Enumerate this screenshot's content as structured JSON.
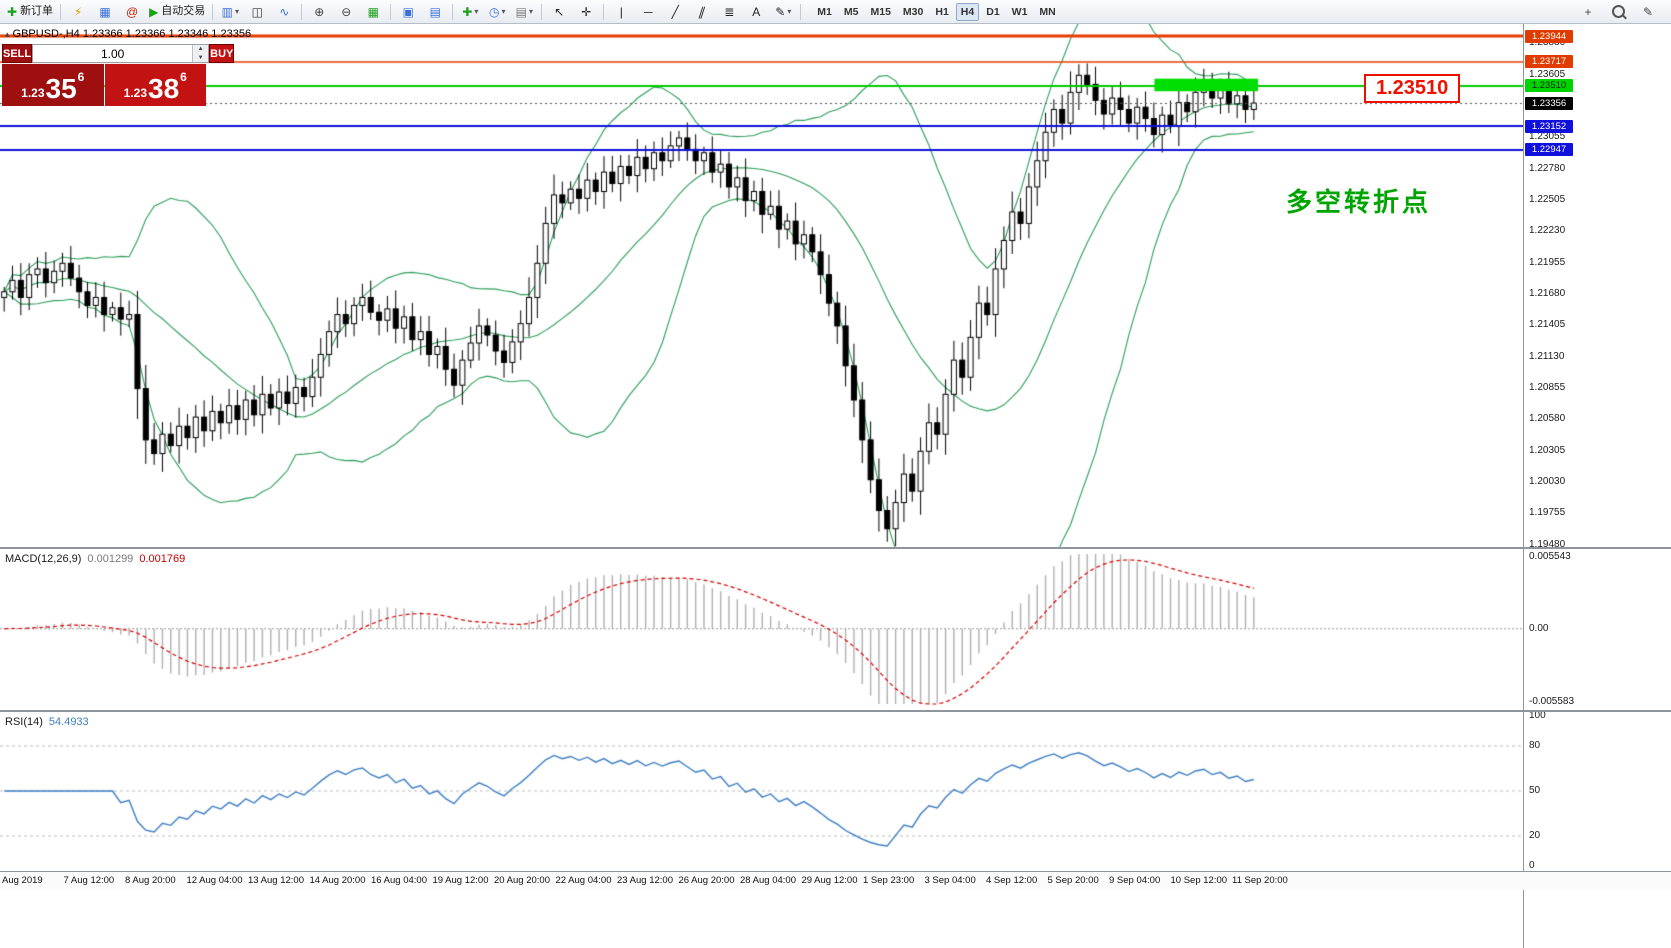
{
  "toolbar": {
    "groups": [
      {
        "items": [
          {
            "name": "new-order-button",
            "glyph": "✚",
            "color": "#1fa11f",
            "label": "新订单"
          }
        ]
      },
      {
        "items": [
          {
            "name": "mql-editor-button",
            "glyph": "⚡",
            "color": "#e8a000"
          },
          {
            "name": "market-watch-button",
            "glyph": "▦",
            "color": "#3a6fd8"
          },
          {
            "name": "expert-advisors-button",
            "glyph": "@",
            "color": "#cc2200"
          },
          {
            "name": "auto-trading-button",
            "glyph": "▶",
            "color": "#18a018",
            "label": "自动交易"
          }
        ]
      },
      {
        "items": [
          {
            "name": "bar-chart-button",
            "glyph": "▥",
            "color": "#3a6fd8",
            "dropdown": true
          },
          {
            "name": "candlestick-chart-button",
            "glyph": "◫",
            "color": "#333333"
          },
          {
            "name": "line-chart-button",
            "glyph": "∿",
            "color": "#3a6fd8"
          }
        ]
      },
      {
        "items": [
          {
            "name": "zoom-in-button",
            "glyph": "⊕",
            "color": "#444444"
          },
          {
            "name": "zoom-out-button",
            "glyph": "⊖",
            "color": "#444444"
          },
          {
            "name": "grid-button",
            "glyph": "▦",
            "color": "#1fa11f"
          }
        ]
      },
      {
        "items": [
          {
            "name": "tile-windows-button",
            "glyph": "▣",
            "color": "#3a6fd8"
          },
          {
            "name": "cascade-windows-button",
            "glyph": "▤",
            "color": "#3a6fd8"
          }
        ]
      },
      {
        "items": [
          {
            "name": "add-indicator-button",
            "glyph": "✚",
            "color": "#1fa11f",
            "dropdown": true
          },
          {
            "name": "period-button",
            "glyph": "◷",
            "color": "#3a6fd8",
            "dropdown": true
          },
          {
            "name": "template-button",
            "glyph": "▤",
            "color": "#777777",
            "dropdown": true
          }
        ]
      },
      {
        "items": [
          {
            "name": "cursor-button",
            "glyph": "↖",
            "color": "#222222"
          },
          {
            "name": "crosshair-button",
            "glyph": "✛",
            "color": "#222222"
          }
        ]
      },
      {
        "items": [
          {
            "name": "vertical-line-button",
            "glyph": "|",
            "color": "#222222"
          },
          {
            "name": "horizontal-line-button",
            "glyph": "─",
            "color": "#222222"
          },
          {
            "name": "trendline-button",
            "glyph": "╱",
            "color": "#222222"
          },
          {
            "name": "channel-button",
            "glyph": "∥",
            "color": "#222222",
            "skew": true
          },
          {
            "name": "fibonacci-button",
            "glyph": "≣",
            "color": "#222222"
          },
          {
            "name": "text-button",
            "glyph": "A",
            "color": "#222222"
          },
          {
            "name": "shapes-button",
            "glyph": "✎",
            "color": "#222222",
            "dropdown": true
          }
        ]
      }
    ],
    "timeframes": [
      "M1",
      "M5",
      "M15",
      "M30",
      "H1",
      "H4",
      "D1",
      "W1",
      "MN"
    ],
    "active_timeframe": "H4",
    "right_items": [
      {
        "name": "new-chart-button",
        "glyph": "+",
        "color": "#444444"
      },
      {
        "name": "search-button",
        "icon": "magnifier"
      },
      {
        "name": "edit-button",
        "glyph": "✎",
        "color": "#444444"
      }
    ]
  },
  "chart_header": {
    "collapse_glyph": "▴",
    "symbol": "GBPUSD-,H4",
    "ohlc": "1.23366 1.23366 1.23346 1.23356"
  },
  "trade_panel": {
    "sell_label": "SELL",
    "buy_label": "BUY",
    "volume": "1.00",
    "sell_price": {
      "prefix": "1.23",
      "big": "35",
      "sup": "6"
    },
    "buy_price": {
      "prefix": "1.23",
      "big": "38",
      "sup": "6"
    }
  },
  "annotations": {
    "level_label": "1.23510",
    "turning_point": "多空转折点",
    "level_color": "#ee1100",
    "turning_point_color": "#00a400"
  },
  "price_scale": {
    "ticks": [
      "1.23880",
      "1.23605",
      "1.23055",
      "1.22780",
      "1.22505",
      "1.22230",
      "1.21955",
      "1.21680",
      "1.21405",
      "1.21130",
      "1.20855",
      "1.20580",
      "1.20305",
      "1.20030",
      "1.19755",
      "1.19480"
    ],
    "special": [
      {
        "value": "1.23944",
        "bg": "#e03c00",
        "fg": "#ffffff"
      },
      {
        "value": "1.23717",
        "bg": "#e03c00",
        "fg": "#ffffff"
      },
      {
        "value": "1.23510",
        "bg": "#00d400",
        "fg": "#002200"
      },
      {
        "value": "1.23356",
        "bg": "#000000",
        "fg": "#ffffff"
      },
      {
        "value": "1.23152",
        "bg": "#1111dd",
        "fg": "#ffffff"
      },
      {
        "value": "1.22947",
        "bg": "#1111dd",
        "fg": "#ffffff"
      }
    ]
  },
  "chart_data": {
    "type": "candlestick",
    "symbol": "GBPUSD",
    "timeframe": "H4",
    "price_range": {
      "min": 1.1946,
      "max": 1.2405
    },
    "candle_area_width": 1258,
    "current_price": 1.23356,
    "h_lines": [
      {
        "price": 1.23944,
        "color": "#e63c00",
        "width": 3
      },
      {
        "price": 1.23717,
        "color": "#e63c00",
        "width": 1.5
      },
      {
        "price": 1.2351,
        "color": "#00cc00",
        "width": 2
      },
      {
        "price": 1.23152,
        "color": "#1111dd",
        "width": 2
      },
      {
        "price": 1.22947,
        "color": "#1111dd",
        "width": 2
      }
    ],
    "highlight_rect": {
      "price_top": 1.2357,
      "price_bottom": 1.2346,
      "x0_frac": 0.758,
      "x1_frac": 0.826,
      "color": "#00dd00"
    },
    "closes": [
      1.217,
      1.218,
      1.2165,
      1.2185,
      1.219,
      1.2178,
      1.2188,
      1.2195,
      1.2182,
      1.217,
      1.2158,
      1.2165,
      1.215,
      1.2156,
      1.2146,
      1.215,
      1.2085,
      1.204,
      1.2028,
      1.2045,
      1.2035,
      1.2052,
      1.2042,
      1.206,
      1.2048,
      1.2065,
      1.2055,
      1.207,
      1.2058,
      1.2075,
      1.2062,
      1.208,
      1.2068,
      1.2082,
      1.2072,
      1.2086,
      1.2078,
      1.2095,
      1.2115,
      1.2135,
      1.215,
      1.2142,
      1.2158,
      1.2165,
      1.2152,
      1.2145,
      1.2155,
      1.2138,
      1.2148,
      1.2128,
      1.2135,
      1.2115,
      1.2122,
      1.2102,
      1.2088,
      1.211,
      1.2125,
      1.214,
      1.2132,
      1.2118,
      1.2108,
      1.2126,
      1.2142,
      1.2165,
      1.2195,
      1.223,
      1.2255,
      1.2248,
      1.226,
      1.2252,
      1.2268,
      1.2258,
      1.2275,
      1.2265,
      1.228,
      1.2272,
      1.2288,
      1.2278,
      1.2292,
      1.2285,
      1.2298,
      1.2305,
      1.2295,
      1.2285,
      1.2292,
      1.2275,
      1.2282,
      1.2262,
      1.227,
      1.225,
      1.2258,
      1.2238,
      1.2245,
      1.2225,
      1.2232,
      1.2212,
      1.222,
      1.2205,
      1.2185,
      1.216,
      1.214,
      1.2105,
      1.2075,
      1.204,
      1.2005,
      1.1978,
      1.1962,
      1.1985,
      1.201,
      1.1995,
      1.203,
      1.2055,
      1.2045,
      1.208,
      1.211,
      1.2095,
      1.213,
      1.216,
      1.215,
      1.219,
      1.2215,
      1.224,
      1.223,
      1.2262,
      1.2285,
      1.231,
      1.233,
      1.2318,
      1.2345,
      1.236,
      1.2352,
      1.2338,
      1.2326,
      1.234,
      1.233,
      1.2318,
      1.2332,
      1.2322,
      1.2308,
      1.2325,
      1.2315,
      1.2336,
      1.2328,
      1.2345,
      1.2352,
      1.234,
      1.2348,
      1.2335,
      1.2342,
      1.233,
      1.23356
    ],
    "bollinger": {
      "period": 20,
      "deviation": 2,
      "color": "#2e9e5b"
    },
    "macd": {
      "label": "MACD(12,26,9)",
      "value_main": "0.001299",
      "value_signal": "0.001769",
      "scale_top": "0.005543",
      "scale_mid": "0.00",
      "scale_bottom": "-0.005583",
      "range_max": 0.005543,
      "range_min": -0.005583,
      "histogram_color": "#b0b0b0",
      "signal_color": "#dd0000"
    },
    "rsi": {
      "label": "RSI(14)",
      "value": "54.4933",
      "color": "#3e7ec4",
      "scale": [
        "100",
        "80",
        "50",
        "20",
        "0"
      ],
      "levels": [
        80,
        50,
        20
      ]
    },
    "time_axis": [
      "Aug 2019",
      "7 Aug 12:00",
      "8 Aug 20:00",
      "12 Aug 04:00",
      "13 Aug 12:00",
      "14 Aug 20:00",
      "16 Aug 04:00",
      "19 Aug 12:00",
      "20 Aug 20:00",
      "22 Aug 04:00",
      "23 Aug 12:00",
      "26 Aug 20:00",
      "28 Aug 04:00",
      "29 Aug 12:00",
      "1 Sep 23:00",
      "3 Sep 04:00",
      "4 Sep 12:00",
      "5 Sep 20:00",
      "9 Sep 04:00",
      "10 Sep 12:00",
      "11 Sep 20:00"
    ]
  }
}
